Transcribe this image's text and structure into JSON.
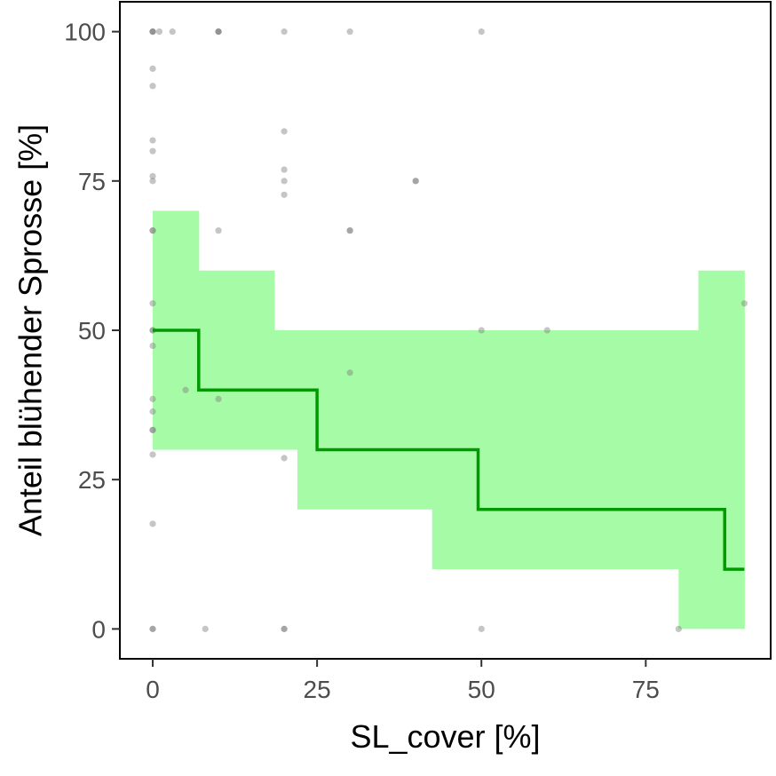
{
  "chart_data": {
    "type": "line",
    "title": "",
    "xlabel": "SL_cover [%]",
    "ylabel": "Anteil blühender Sprosse [%]",
    "xlim": [
      -5,
      94
    ],
    "ylim": [
      -5,
      105
    ],
    "x_ticks": [
      0,
      25,
      50,
      75
    ],
    "x_tick_labels": [
      "0",
      "25",
      "50",
      "75"
    ],
    "y_ticks": [
      0,
      25,
      50,
      75,
      100
    ],
    "y_tick_labels": [
      "0",
      "25",
      "50",
      "75",
      "100"
    ],
    "grid": false,
    "legend": "none",
    "colors": {
      "line": "#009900",
      "ribbon": "#a6fba6",
      "points": "#7f7f7f",
      "frame": "#000000"
    },
    "step_line": [
      {
        "x": 0,
        "y": 50
      },
      {
        "x": 7,
        "y": 50
      },
      {
        "x": 7,
        "y": 40
      },
      {
        "x": 25,
        "y": 40
      },
      {
        "x": 25,
        "y": 30
      },
      {
        "x": 49.5,
        "y": 30
      },
      {
        "x": 49.5,
        "y": 20
      },
      {
        "x": 87,
        "y": 20
      },
      {
        "x": 87,
        "y": 10
      },
      {
        "x": 90,
        "y": 10
      }
    ],
    "ribbon": [
      {
        "x_start": 0,
        "x_end": 7,
        "lower": 30,
        "upper": 70
      },
      {
        "x_start": 7,
        "x_end": 18.5,
        "lower": 30,
        "upper": 60
      },
      {
        "x_start": 18.5,
        "x_end": 22,
        "lower": 30,
        "upper": 50
      },
      {
        "x_start": 22,
        "x_end": 42.5,
        "lower": 20,
        "upper": 50
      },
      {
        "x_start": 42.5,
        "x_end": 80,
        "lower": 10,
        "upper": 50
      },
      {
        "x_start": 80,
        "x_end": 83,
        "lower": 0,
        "upper": 50
      },
      {
        "x_start": 83,
        "x_end": 90,
        "lower": 0,
        "upper": 60
      }
    ],
    "points": [
      {
        "x": 0,
        "y": 100
      },
      {
        "x": 0,
        "y": 100
      },
      {
        "x": 0,
        "y": 100
      },
      {
        "x": 1,
        "y": 100
      },
      {
        "x": 3,
        "y": 100
      },
      {
        "x": 10,
        "y": 100
      },
      {
        "x": 10,
        "y": 100
      },
      {
        "x": 10,
        "y": 100
      },
      {
        "x": 20,
        "y": 100
      },
      {
        "x": 30,
        "y": 100
      },
      {
        "x": 50,
        "y": 100
      },
      {
        "x": 0,
        "y": 93.8
      },
      {
        "x": 0,
        "y": 90.9
      },
      {
        "x": 0,
        "y": 81.8
      },
      {
        "x": 0,
        "y": 80
      },
      {
        "x": 0,
        "y": 75.8
      },
      {
        "x": 0,
        "y": 75
      },
      {
        "x": 20,
        "y": 83.3
      },
      {
        "x": 20,
        "y": 76.9
      },
      {
        "x": 20,
        "y": 75
      },
      {
        "x": 20,
        "y": 72.7
      },
      {
        "x": 40,
        "y": 75
      },
      {
        "x": 40,
        "y": 75
      },
      {
        "x": 0,
        "y": 66.7
      },
      {
        "x": 0,
        "y": 66.7
      },
      {
        "x": 10,
        "y": 66.7
      },
      {
        "x": 30,
        "y": 66.7
      },
      {
        "x": 30,
        "y": 66.7
      },
      {
        "x": 0,
        "y": 54.5
      },
      {
        "x": 0,
        "y": 50
      },
      {
        "x": 0,
        "y": 50
      },
      {
        "x": 0,
        "y": 47.4
      },
      {
        "x": 50,
        "y": 50
      },
      {
        "x": 60,
        "y": 50
      },
      {
        "x": 90,
        "y": 54.5
      },
      {
        "x": 5,
        "y": 40
      },
      {
        "x": 10,
        "y": 38.5
      },
      {
        "x": 30,
        "y": 42.9
      },
      {
        "x": 0,
        "y": 38.5
      },
      {
        "x": 0,
        "y": 36.4
      },
      {
        "x": 0,
        "y": 33.3
      },
      {
        "x": 0,
        "y": 33.3
      },
      {
        "x": 0,
        "y": 29.2
      },
      {
        "x": 20,
        "y": 28.6
      },
      {
        "x": 0,
        "y": 17.6
      },
      {
        "x": 0,
        "y": 0
      },
      {
        "x": 0,
        "y": 0
      },
      {
        "x": 8,
        "y": 0
      },
      {
        "x": 20,
        "y": 0
      },
      {
        "x": 20,
        "y": 0
      },
      {
        "x": 50,
        "y": 0
      },
      {
        "x": 80,
        "y": 0
      }
    ]
  }
}
